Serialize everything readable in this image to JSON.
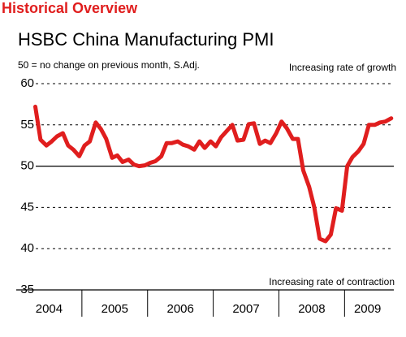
{
  "header": "Historical Overview",
  "chart_data": {
    "type": "line",
    "title": "HSBC China Manufacturing PMI",
    "subtitle": "50 = no change on previous month, S.Adj.",
    "annotations": [
      "Increasing rate of growth",
      "Increasing rate of contraction"
    ],
    "x": [
      2004.29,
      2004.37,
      2004.46,
      2004.54,
      2004.62,
      2004.71,
      2004.79,
      2004.87,
      2004.96,
      2005.04,
      2005.12,
      2005.21,
      2005.29,
      2005.37,
      2005.46,
      2005.54,
      2005.62,
      2005.71,
      2005.79,
      2005.87,
      2005.96,
      2006.04,
      2006.12,
      2006.21,
      2006.29,
      2006.37,
      2006.46,
      2006.54,
      2006.62,
      2006.71,
      2006.79,
      2006.87,
      2006.96,
      2007.04,
      2007.12,
      2007.21,
      2007.29,
      2007.37,
      2007.46,
      2007.54,
      2007.62,
      2007.71,
      2007.79,
      2007.87,
      2007.96,
      2008.04,
      2008.12,
      2008.21,
      2008.29,
      2008.37,
      2008.46,
      2008.54,
      2008.62,
      2008.71,
      2008.79,
      2008.87,
      2008.96,
      2009.04,
      2009.12,
      2009.21,
      2009.29,
      2009.37,
      2009.46,
      2009.54,
      2009.62,
      2009.71
    ],
    "series": [
      {
        "name": "PMI",
        "color": "#e01e1e",
        "values": [
          57.2,
          53.2,
          52.5,
          53.0,
          53.6,
          54.0,
          52.5,
          52.0,
          51.2,
          52.5,
          53.0,
          55.3,
          54.5,
          53.3,
          51.0,
          51.3,
          50.5,
          50.8,
          50.2,
          50.0,
          50.1,
          50.4,
          50.6,
          51.2,
          52.8,
          52.8,
          53.0,
          52.6,
          52.4,
          52.0,
          53.0,
          52.2,
          53.0,
          52.4,
          53.5,
          54.3,
          55.0,
          53.1,
          53.2,
          55.1,
          55.2,
          52.7,
          53.1,
          52.8,
          54.0,
          55.4,
          54.6,
          53.3,
          53.3,
          49.5,
          47.5,
          45.0,
          41.2,
          40.9,
          41.7,
          44.9,
          44.6,
          50.0,
          51.1,
          51.8,
          52.7,
          55.0,
          55.0,
          55.3,
          55.4,
          55.8
        ]
      }
    ],
    "xlim": [
      2004,
      2009.75
    ],
    "xticks": [
      {
        "value": 2004.5,
        "label": "2004"
      },
      {
        "value": 2005.5,
        "label": "2005"
      },
      {
        "value": 2006.5,
        "label": "2006"
      },
      {
        "value": 2007.5,
        "label": "2007"
      },
      {
        "value": 2008.5,
        "label": "2008"
      },
      {
        "value": 2009.35,
        "label": "2009"
      }
    ],
    "xminorticks": [
      2005,
      2006,
      2007,
      2008,
      2009
    ],
    "ylim": [
      35,
      60
    ],
    "yticks": [
      35,
      40,
      45,
      50,
      55,
      60
    ],
    "baseline": 50,
    "grid": true
  }
}
